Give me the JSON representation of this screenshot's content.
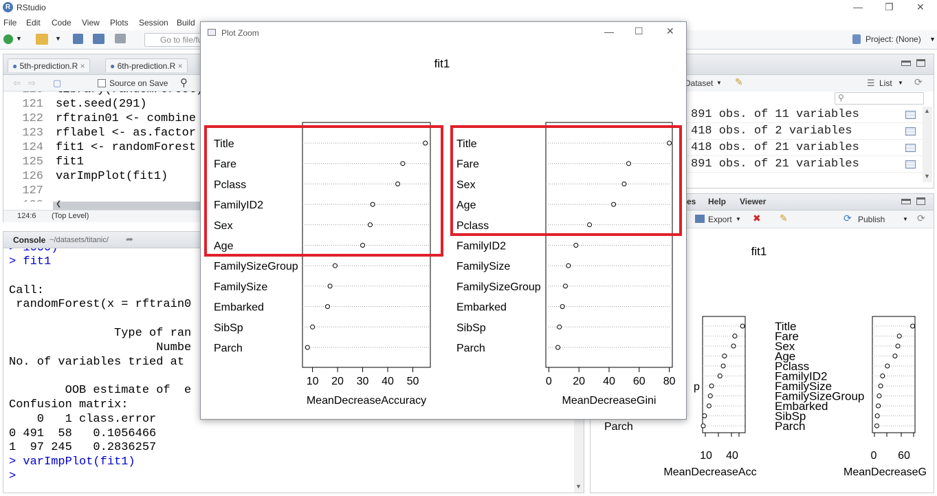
{
  "app": {
    "title": "RStudio"
  },
  "menu": [
    "File",
    "Edit",
    "Code",
    "View",
    "Plots",
    "Session",
    "Build",
    "Debug",
    "Profile",
    "Tools",
    "Help"
  ],
  "toolbar": {
    "goto_placeholder": "Go to file/function",
    "project": "Project: (None)"
  },
  "editor": {
    "tabs": [
      "5th-prediction.R",
      "6th-prediction.R"
    ],
    "source_on_save": "Source on Save",
    "first_line_partial": "library(randomForest)",
    "lines": [
      {
        "n": "121",
        "code": "set.seed(291)"
      },
      {
        "n": "122",
        "code": "rftrain01 <- combine"
      },
      {
        "n": "123",
        "code": "rflabel <- as.factor"
      },
      {
        "n": "124",
        "code": "fit1 <- randomForest"
      },
      {
        "n": "125",
        "code": "fit1"
      },
      {
        "n": "126",
        "code": "varImpPlot(fit1)"
      },
      {
        "n": "127",
        "code": ""
      },
      {
        "n": "128",
        "code": ""
      }
    ],
    "status_pos": "124:6",
    "status_scope": "(Top Level)"
  },
  "console": {
    "tab": "Console",
    "path": "~/datasets/titanic/",
    "lines": [
      {
        "t": "> fit1",
        "kind": "cmd"
      },
      {
        "t": "",
        "kind": "out"
      },
      {
        "t": "Call:",
        "kind": "out"
      },
      {
        "t": " randomForest(x = rftrain0",
        "kind": "out"
      },
      {
        "t": "",
        "kind": "out"
      },
      {
        "t": "               Type of ran",
        "kind": "out"
      },
      {
        "t": "                     Numbe",
        "kind": "out"
      },
      {
        "t": "No. of variables tried at",
        "kind": "out"
      },
      {
        "t": "",
        "kind": "out"
      },
      {
        "t": "        OOB estimate of  e",
        "kind": "out"
      },
      {
        "t": "Confusion matrix:",
        "kind": "out"
      },
      {
        "t": "    0   1 class.error",
        "kind": "out"
      },
      {
        "t": "0 491  58   0.1056466",
        "kind": "out"
      },
      {
        "t": "1  97 245   0.2836257",
        "kind": "out"
      },
      {
        "t": "> varImpPlot(fit1)",
        "kind": "cmd"
      },
      {
        "t": ">",
        "kind": "cmd"
      }
    ]
  },
  "environment": {
    "dataset_btn": "Dataset",
    "list_btn": "List",
    "rows": [
      "891 obs. of 11 variables",
      "418 obs. of 2 variables",
      "418 obs. of 21 variables",
      "891 obs. of 21 variables"
    ]
  },
  "viewer": {
    "tabs": [
      "es",
      "Help",
      "Viewer"
    ],
    "export_btn": "Export",
    "publish_btn": "Publish",
    "plot_title": "fit1",
    "left_partial_label": "p",
    "left_bottom_label": "Parch",
    "left_xlabel": "MeanDecreaseAcc",
    "left_ticks": [
      "10",
      "40"
    ],
    "right_labels": [
      "Title",
      "Fare",
      "Sex",
      "Age",
      "Pclass",
      "FamilyID2",
      "FamilySize",
      "FamilySizeGroup",
      "Embarked",
      "SibSp",
      "Parch"
    ],
    "right_xlabel": "MeanDecreaseG",
    "right_ticks": [
      "0",
      "60"
    ],
    "left_dots": [
      62,
      50,
      48,
      34,
      32,
      27,
      14,
      12,
      10,
      3,
      1
    ],
    "right_dots": [
      80,
      52,
      49,
      43,
      27,
      17,
      13,
      10,
      8,
      6,
      5
    ]
  },
  "plot_zoom": {
    "window_title": "Plot Zoom",
    "title": "fit1",
    "chart_data": [
      {
        "type": "scatter",
        "title": "fit1",
        "xlabel": "MeanDecreaseAccuracy",
        "xticks": [
          10,
          20,
          30,
          40,
          50
        ],
        "xlim": [
          6,
          57
        ],
        "categories": [
          "Title",
          "Fare",
          "Pclass",
          "FamilyID2",
          "Sex",
          "Age",
          "FamilySizeGroup",
          "FamilySize",
          "Embarked",
          "SibSp",
          "Parch"
        ],
        "values": [
          55,
          46,
          44,
          34,
          33,
          30,
          19,
          17,
          16,
          10,
          8
        ]
      },
      {
        "type": "scatter",
        "xlabel": "MeanDecreaseGini",
        "xticks": [
          0,
          20,
          40,
          60,
          80
        ],
        "xlim": [
          -2,
          82
        ],
        "categories": [
          "Title",
          "Fare",
          "Sex",
          "Age",
          "Pclass",
          "FamilyID2",
          "FamilySize",
          "FamilySizeGroup",
          "Embarked",
          "SibSp",
          "Parch"
        ],
        "values": [
          80,
          53,
          50,
          43,
          27,
          18,
          13,
          11,
          9,
          7,
          6
        ]
      }
    ]
  }
}
